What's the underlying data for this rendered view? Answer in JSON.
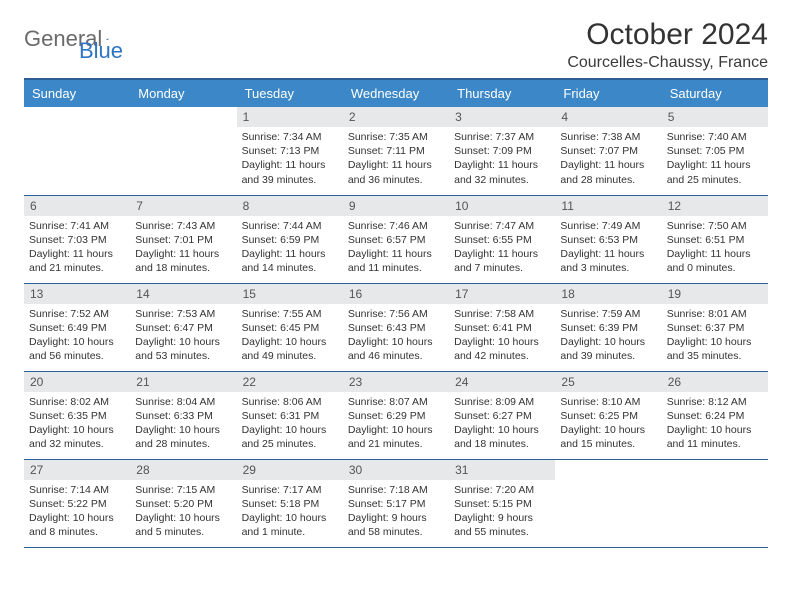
{
  "logo": {
    "text1": "General",
    "text2": "Blue"
  },
  "title": "October 2024",
  "location": "Courcelles-Chaussy, France",
  "colors": {
    "header_bg": "#3b87c8",
    "header_border": "#2a5f95",
    "daynum_bg": "#e7e8e9",
    "text": "#333333"
  },
  "weekdays": [
    "Sunday",
    "Monday",
    "Tuesday",
    "Wednesday",
    "Thursday",
    "Friday",
    "Saturday"
  ],
  "weeks": [
    [
      null,
      null,
      {
        "n": "1",
        "sr": "7:34 AM",
        "ss": "7:13 PM",
        "dl": "11 hours and 39 minutes."
      },
      {
        "n": "2",
        "sr": "7:35 AM",
        "ss": "7:11 PM",
        "dl": "11 hours and 36 minutes."
      },
      {
        "n": "3",
        "sr": "7:37 AM",
        "ss": "7:09 PM",
        "dl": "11 hours and 32 minutes."
      },
      {
        "n": "4",
        "sr": "7:38 AM",
        "ss": "7:07 PM",
        "dl": "11 hours and 28 minutes."
      },
      {
        "n": "5",
        "sr": "7:40 AM",
        "ss": "7:05 PM",
        "dl": "11 hours and 25 minutes."
      }
    ],
    [
      {
        "n": "6",
        "sr": "7:41 AM",
        "ss": "7:03 PM",
        "dl": "11 hours and 21 minutes."
      },
      {
        "n": "7",
        "sr": "7:43 AM",
        "ss": "7:01 PM",
        "dl": "11 hours and 18 minutes."
      },
      {
        "n": "8",
        "sr": "7:44 AM",
        "ss": "6:59 PM",
        "dl": "11 hours and 14 minutes."
      },
      {
        "n": "9",
        "sr": "7:46 AM",
        "ss": "6:57 PM",
        "dl": "11 hours and 11 minutes."
      },
      {
        "n": "10",
        "sr": "7:47 AM",
        "ss": "6:55 PM",
        "dl": "11 hours and 7 minutes."
      },
      {
        "n": "11",
        "sr": "7:49 AM",
        "ss": "6:53 PM",
        "dl": "11 hours and 3 minutes."
      },
      {
        "n": "12",
        "sr": "7:50 AM",
        "ss": "6:51 PM",
        "dl": "11 hours and 0 minutes."
      }
    ],
    [
      {
        "n": "13",
        "sr": "7:52 AM",
        "ss": "6:49 PM",
        "dl": "10 hours and 56 minutes."
      },
      {
        "n": "14",
        "sr": "7:53 AM",
        "ss": "6:47 PM",
        "dl": "10 hours and 53 minutes."
      },
      {
        "n": "15",
        "sr": "7:55 AM",
        "ss": "6:45 PM",
        "dl": "10 hours and 49 minutes."
      },
      {
        "n": "16",
        "sr": "7:56 AM",
        "ss": "6:43 PM",
        "dl": "10 hours and 46 minutes."
      },
      {
        "n": "17",
        "sr": "7:58 AM",
        "ss": "6:41 PM",
        "dl": "10 hours and 42 minutes."
      },
      {
        "n": "18",
        "sr": "7:59 AM",
        "ss": "6:39 PM",
        "dl": "10 hours and 39 minutes."
      },
      {
        "n": "19",
        "sr": "8:01 AM",
        "ss": "6:37 PM",
        "dl": "10 hours and 35 minutes."
      }
    ],
    [
      {
        "n": "20",
        "sr": "8:02 AM",
        "ss": "6:35 PM",
        "dl": "10 hours and 32 minutes."
      },
      {
        "n": "21",
        "sr": "8:04 AM",
        "ss": "6:33 PM",
        "dl": "10 hours and 28 minutes."
      },
      {
        "n": "22",
        "sr": "8:06 AM",
        "ss": "6:31 PM",
        "dl": "10 hours and 25 minutes."
      },
      {
        "n": "23",
        "sr": "8:07 AM",
        "ss": "6:29 PM",
        "dl": "10 hours and 21 minutes."
      },
      {
        "n": "24",
        "sr": "8:09 AM",
        "ss": "6:27 PM",
        "dl": "10 hours and 18 minutes."
      },
      {
        "n": "25",
        "sr": "8:10 AM",
        "ss": "6:25 PM",
        "dl": "10 hours and 15 minutes."
      },
      {
        "n": "26",
        "sr": "8:12 AM",
        "ss": "6:24 PM",
        "dl": "10 hours and 11 minutes."
      }
    ],
    [
      {
        "n": "27",
        "sr": "7:14 AM",
        "ss": "5:22 PM",
        "dl": "10 hours and 8 minutes."
      },
      {
        "n": "28",
        "sr": "7:15 AM",
        "ss": "5:20 PM",
        "dl": "10 hours and 5 minutes."
      },
      {
        "n": "29",
        "sr": "7:17 AM",
        "ss": "5:18 PM",
        "dl": "10 hours and 1 minute."
      },
      {
        "n": "30",
        "sr": "7:18 AM",
        "ss": "5:17 PM",
        "dl": "9 hours and 58 minutes."
      },
      {
        "n": "31",
        "sr": "7:20 AM",
        "ss": "5:15 PM",
        "dl": "9 hours and 55 minutes."
      },
      null,
      null
    ]
  ],
  "labels": {
    "sunrise": "Sunrise:",
    "sunset": "Sunset:",
    "daylight": "Daylight:"
  }
}
